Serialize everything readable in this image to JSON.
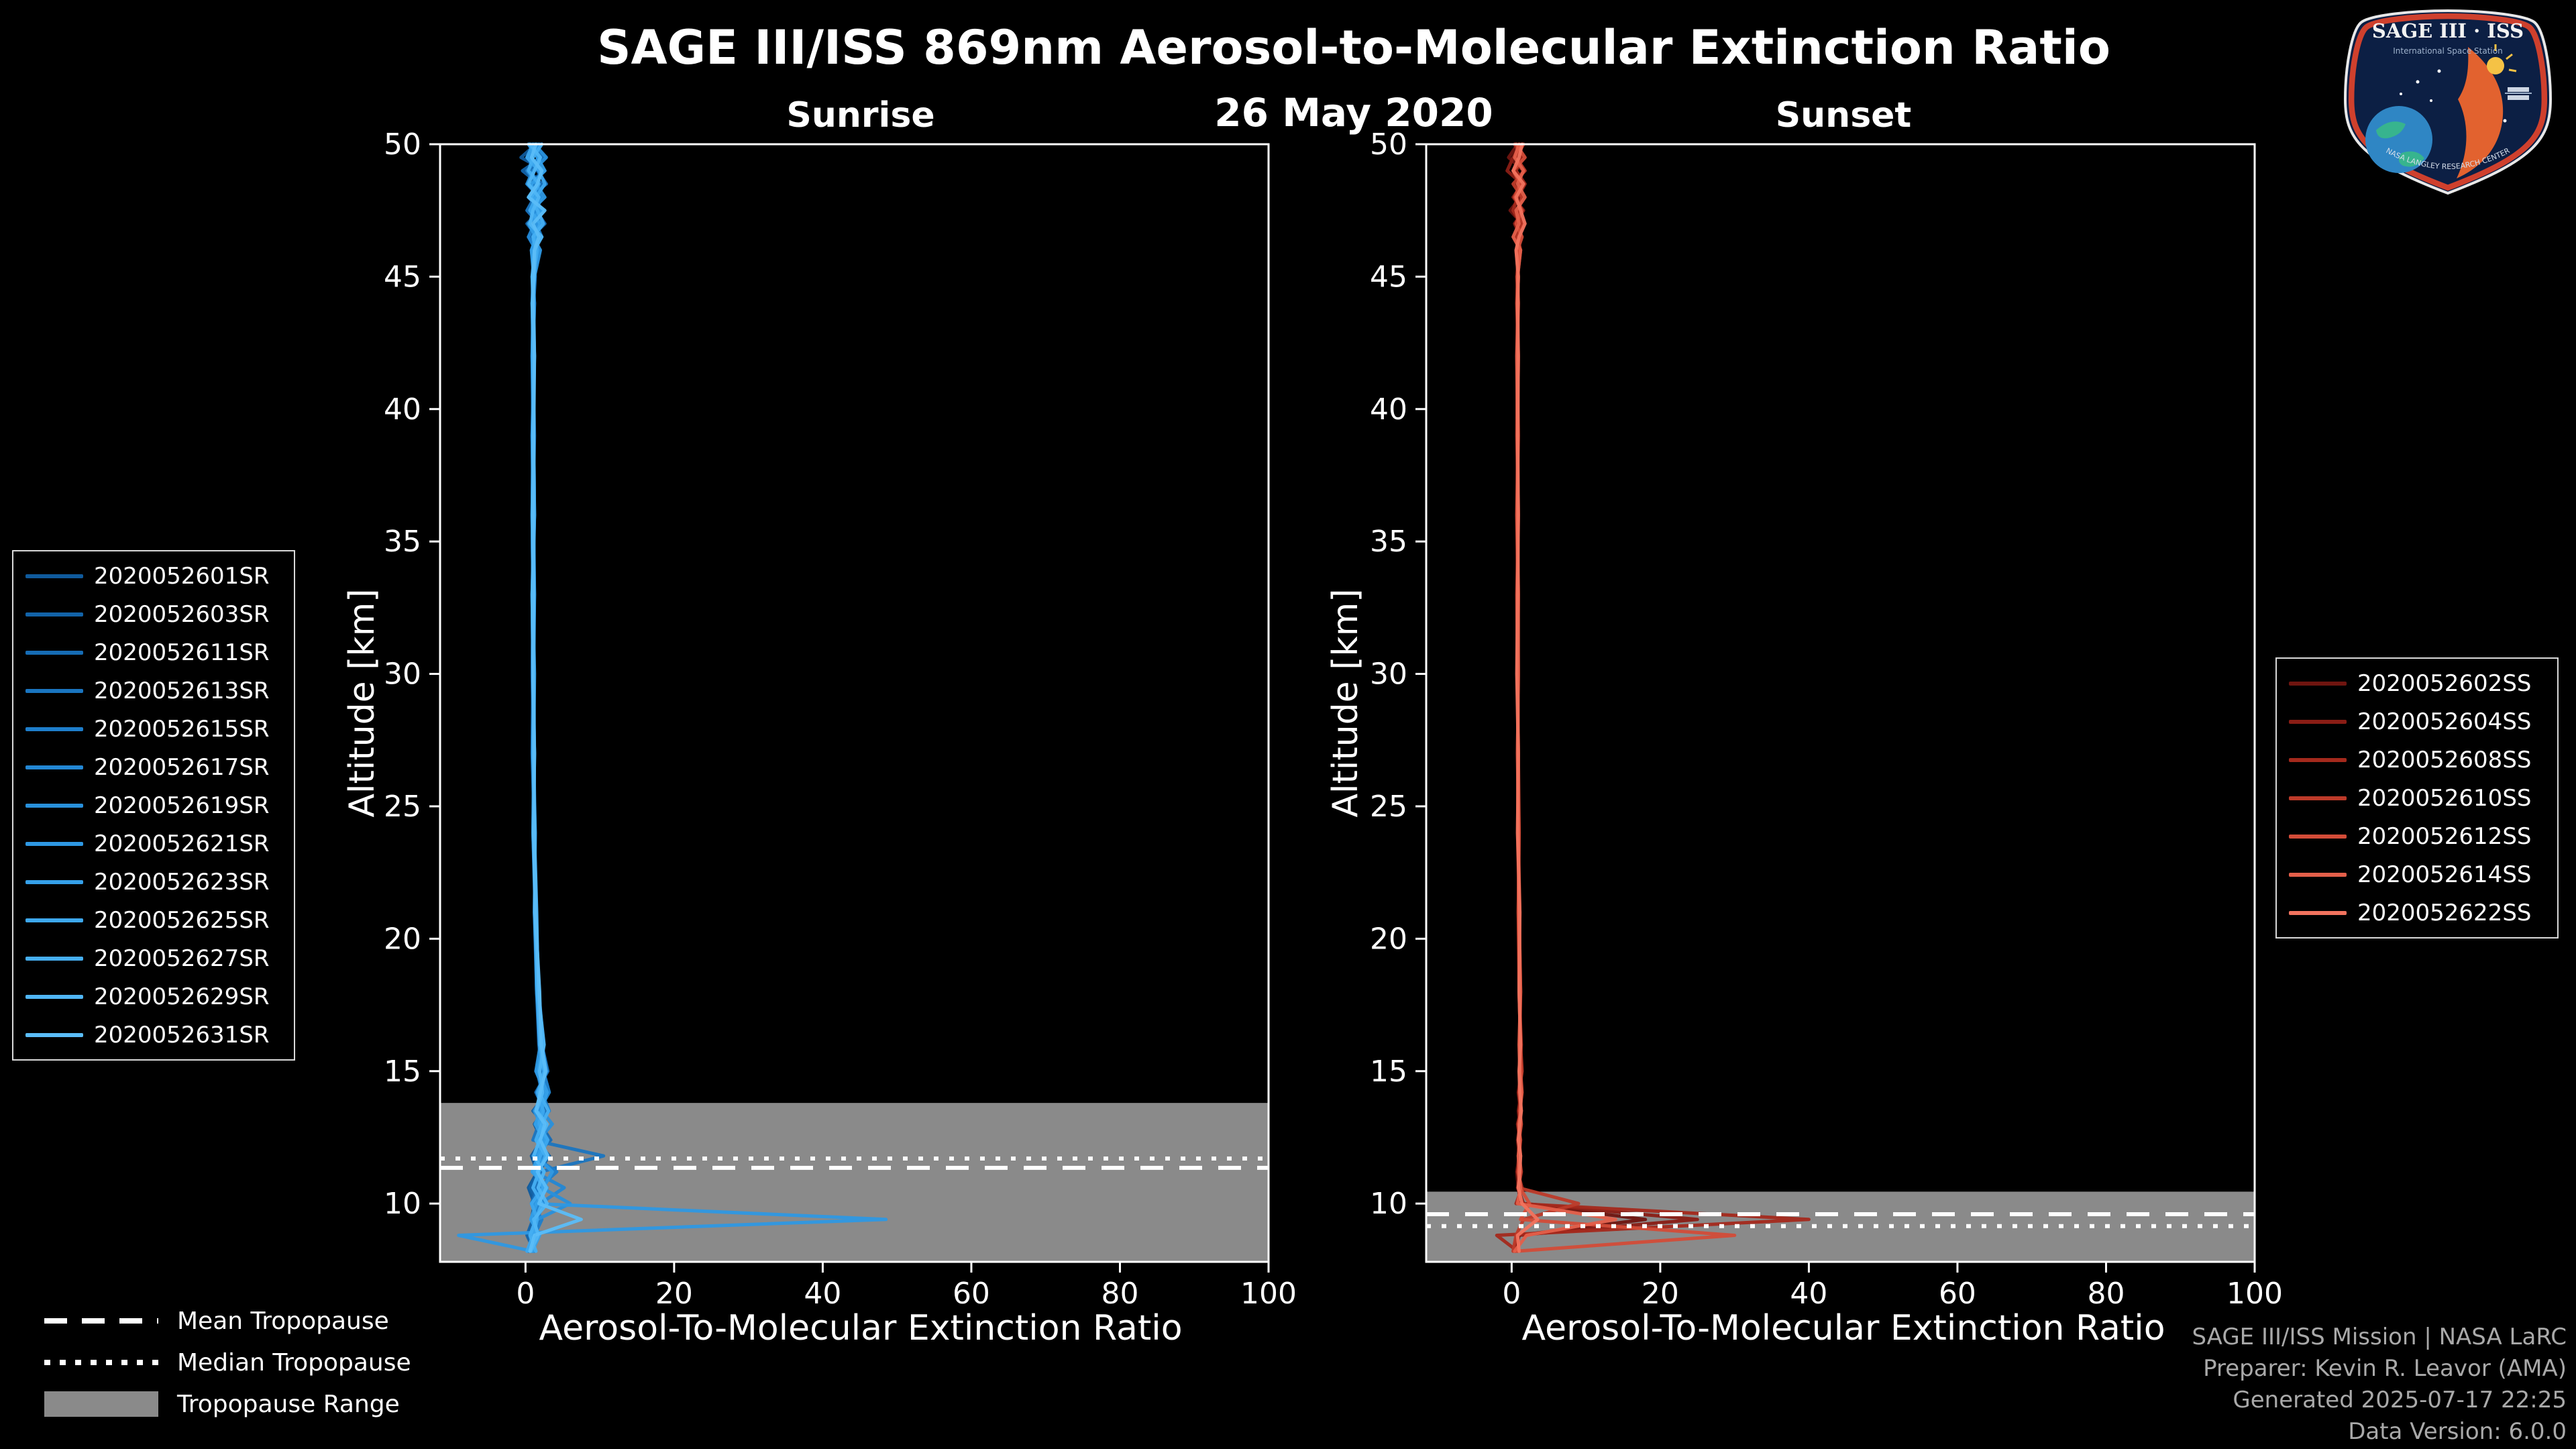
{
  "page": {
    "title": "SAGE III/ISS 869nm Aerosol-to-Molecular Extinction Ratio",
    "date": "26 May 2020"
  },
  "logo": {
    "title": "SAGE III · ISS",
    "subtitle": "International Space Station",
    "arc_text": "NASA LANGLEY RESEARCH CENTER"
  },
  "legends": {
    "tropopause": {
      "mean": "Mean Tropopause",
      "median": "Median Tropopause",
      "range": "Tropopause Range"
    }
  },
  "credits": {
    "lines": [
      "SAGE III/ISS Mission | NASA LaRC",
      "Preparer: Kevin R. Leavor (AMA)",
      "Generated 2025-07-17 22:25",
      "Data Version: 6.0.0"
    ]
  },
  "chart_data": [
    {
      "type": "line",
      "title": "Sunrise",
      "xlabel": "Aerosol-To-Molecular Extinction Ratio",
      "ylabel": "Altitude [km]",
      "xlim": [
        -11.5,
        100
      ],
      "ylim": [
        7.8,
        50
      ],
      "xticks": [
        0,
        20,
        40,
        60,
        80,
        100
      ],
      "yticks": [
        10,
        15,
        20,
        25,
        30,
        35,
        40,
        45,
        50
      ],
      "grid": false,
      "legend_position": "outside-left",
      "tropopause": {
        "mean": 11.35,
        "median": 11.7,
        "range": [
          7.8,
          13.8
        ],
        "range_color": "#8a8a8a"
      },
      "altitudes": [
        50,
        49.5,
        49,
        48.5,
        48,
        47.5,
        47,
        46.5,
        46,
        45,
        44,
        42,
        39,
        36,
        33,
        30,
        27,
        24,
        21,
        18,
        16,
        15,
        14.2,
        13.5,
        13,
        12.4,
        11.8,
        11.2,
        10.6,
        10,
        9.4,
        8.8,
        8.2
      ],
      "series": [
        {
          "name": "2020052601SR",
          "color": "#0f5a9c",
          "values": [
            1.4,
            -0.6,
            2.6,
            0.2,
            1.8,
            0.8,
            2.4,
            0.4,
            1.6,
            1.0,
            1.2,
            1.0,
            1.1,
            0.9,
            1.0,
            1.1,
            1.0,
            1.2,
            1.3,
            1.6,
            2.0,
            2.6,
            1.8,
            2.4,
            1.2,
            2.2,
            0.8,
            1.6,
            0.4,
            1.2,
            0.8,
            1.4,
            0.6
          ]
        },
        {
          "name": "2020052603SR",
          "color": "#1263a9",
          "values": [
            0.6,
            2.2,
            -0.4,
            1.8,
            0.4,
            2.0,
            0.2,
            1.6,
            0.8,
            1.2,
            0.9,
            1.1,
            1.0,
            1.2,
            0.9,
            1.0,
            1.2,
            1.1,
            1.4,
            1.7,
            2.4,
            1.4,
            3.0,
            1.0,
            2.6,
            1.4,
            3.2,
            1.8,
            0.6,
            1.8,
            1.0,
            0.2,
            1.2
          ]
        },
        {
          "name": "2020052611SR",
          "color": "#166cb5",
          "values": [
            2.0,
            0.2,
            1.6,
            2.8,
            0.6,
            1.4,
            2.6,
            0.8,
            1.8,
            1.1,
            1.0,
            1.2,
            0.9,
            1.1,
            1.0,
            0.9,
            1.1,
            1.3,
            1.2,
            1.5,
            1.8,
            2.2,
            2.8,
            1.6,
            2.0,
            3.4,
            1.2,
            2.4,
            1.6,
            0.8,
            1.8,
            1.2,
            0.4
          ]
        },
        {
          "name": "2020052613SR",
          "color": "#1a75c0",
          "values": [
            1.0,
            2.6,
            0.4,
            2.2,
            1.2,
            0.2,
            1.8,
            1.0,
            1.4,
            0.9,
            1.1,
            1.0,
            1.2,
            1.0,
            1.1,
            1.0,
            0.9,
            1.2,
            1.4,
            1.6,
            2.2,
            3.0,
            1.4,
            2.6,
            1.8,
            1.0,
            10.5,
            2.0,
            1.2,
            2.6,
            1.4,
            0.6,
            1.0
          ]
        },
        {
          "name": "2020052615SR",
          "color": "#1e7ecb",
          "values": [
            1.6,
            0.4,
            2.4,
            1.0,
            2.0,
            0.6,
            1.4,
            2.2,
            1.0,
            1.3,
            1.1,
            0.9,
            1.0,
            1.1,
            1.2,
            1.0,
            1.1,
            1.2,
            1.3,
            1.8,
            2.4,
            1.6,
            2.2,
            3.2,
            1.4,
            2.4,
            1.0,
            4.2,
            1.8,
            1.0,
            2.2,
            1.2,
            0.8
          ]
        },
        {
          "name": "2020052617SR",
          "color": "#2387d4",
          "values": [
            0.8,
            1.8,
            0.2,
            1.6,
            0.6,
            2.4,
            1.2,
            0.4,
            1.4,
            1.0,
            0.9,
            1.1,
            1.0,
            0.9,
            1.0,
            1.1,
            1.2,
            1.0,
            1.3,
            1.5,
            1.9,
            2.4,
            3.2,
            1.8,
            2.8,
            1.6,
            2.2,
            1.2,
            5.2,
            2.0,
            1.0,
            1.6,
            0.4
          ]
        },
        {
          "name": "2020052619SR",
          "color": "#2890dc",
          "values": [
            1.2,
            2.8,
            1.0,
            0.2,
            2.2,
            1.4,
            0.6,
            1.8,
            1.2,
            1.0,
            1.2,
            1.0,
            1.1,
            1.2,
            0.9,
            1.0,
            1.1,
            1.2,
            1.4,
            1.7,
            2.1,
            2.8,
            1.6,
            2.2,
            3.6,
            1.8,
            2.6,
            1.4,
            2.2,
            6.0,
            1.6,
            0.8,
            1.2
          ]
        },
        {
          "name": "2020052621SR",
          "color": "#2e98e3",
          "values": [
            1.8,
            0.6,
            2.2,
            1.4,
            2.6,
            0.8,
            1.6,
            1.0,
            2.0,
            1.2,
            1.0,
            1.1,
            0.9,
            1.0,
            1.1,
            1.0,
            1.2,
            1.1,
            1.3,
            1.6,
            2.0,
            1.4,
            2.6,
            1.2,
            2.0,
            2.8,
            1.4,
            3.6,
            2.4,
            1.2,
            48.5,
            -9.0,
            1.0
          ]
        },
        {
          "name": "2020052623SR",
          "color": "#35a0e9",
          "values": [
            0.4,
            1.6,
            2.6,
            0.8,
            1.2,
            2.0,
            0.4,
            1.4,
            0.8,
            1.1,
            1.0,
            0.9,
            1.1,
            1.0,
            1.2,
            1.1,
            1.0,
            1.2,
            1.3,
            1.5,
            2.3,
            1.7,
            2.9,
            2.1,
            1.3,
            2.5,
            1.7,
            0.9,
            2.9,
            1.5,
            0.7,
            1.9,
            0.9
          ]
        },
        {
          "name": "2020052625SR",
          "color": "#3da8ee",
          "values": [
            1.0,
            0.2,
            1.8,
            2.6,
            1.4,
            0.6,
            2.0,
            1.2,
            1.6,
            1.0,
            1.1,
            1.2,
            1.0,
            0.9,
            1.0,
            1.2,
            1.1,
            1.0,
            1.4,
            1.8,
            2.2,
            2.8,
            1.6,
            2.4,
            1.8,
            3.0,
            2.0,
            1.2,
            2.4,
            0.8,
            1.6,
            1.0,
            0.2
          ]
        },
        {
          "name": "2020052627SR",
          "color": "#46aff2",
          "values": [
            2.2,
            1.0,
            0.4,
            1.8,
            0.8,
            1.6,
            2.4,
            1.0,
            1.4,
            1.2,
            0.9,
            1.0,
            1.1,
            1.2,
            1.0,
            1.1,
            1.0,
            1.3,
            1.2,
            1.6,
            1.9,
            2.5,
            1.8,
            3.1,
            2.2,
            1.4,
            2.7,
            1.8,
            1.0,
            2.2,
            1.4,
            0.6,
            1.4
          ]
        },
        {
          "name": "2020052629SR",
          "color": "#50b6f5",
          "values": [
            0.6,
            2.0,
            1.2,
            0.4,
            1.8,
            1.0,
            0.6,
            2.2,
            1.2,
            0.9,
            1.0,
            1.1,
            1.0,
            1.1,
            0.9,
            1.0,
            1.1,
            1.2,
            1.5,
            1.7,
            2.5,
            1.9,
            2.3,
            1.5,
            2.9,
            1.9,
            1.1,
            2.5,
            1.7,
            2.9,
            1.1,
            1.7,
            0.7
          ]
        },
        {
          "name": "2020052631SR",
          "color": "#5bbdf8",
          "values": [
            1.4,
            0.8,
            2.2,
            1.6,
            0.4,
            2.6,
            1.0,
            1.8,
            1.2,
            1.1,
            1.0,
            1.2,
            1.1,
            1.0,
            1.1,
            1.0,
            1.2,
            1.1,
            1.3,
            1.9,
            2.1,
            2.7,
            2.0,
            1.4,
            2.6,
            2.0,
            3.0,
            1.6,
            2.8,
            1.8,
            7.5,
            1.2,
            0.6
          ]
        }
      ]
    },
    {
      "type": "line",
      "title": "Sunset",
      "xlabel": "Aerosol-To-Molecular Extinction Ratio",
      "ylabel": "Altitude [km]",
      "xlim": [
        -11.5,
        100
      ],
      "ylim": [
        7.8,
        50
      ],
      "xticks": [
        0,
        20,
        40,
        60,
        80,
        100
      ],
      "yticks": [
        10,
        15,
        20,
        25,
        30,
        35,
        40,
        45,
        50
      ],
      "grid": false,
      "legend_position": "outside-right",
      "tropopause": {
        "mean": 9.6,
        "median": 9.15,
        "range": [
          7.8,
          10.45
        ],
        "range_color": "#8a8a8a"
      },
      "altitudes": [
        50,
        49.5,
        49,
        48.5,
        48,
        47.5,
        47,
        46.5,
        46,
        45,
        44,
        42,
        39,
        36,
        33,
        30,
        27,
        24,
        21,
        18,
        16,
        15,
        14.2,
        13.5,
        13,
        12.4,
        11.8,
        11.2,
        10.6,
        10,
        9.4,
        8.8,
        8.2
      ],
      "series": [
        {
          "name": "2020052602SS",
          "color": "#6f1510",
          "values": [
            0.8,
            -0.4,
            1.6,
            0.4,
            1.2,
            -0.2,
            1.4,
            0.6,
            1.0,
            0.8,
            0.7,
            0.9,
            0.8,
            0.7,
            0.8,
            0.9,
            0.8,
            0.9,
            1.0,
            1.1,
            1.2,
            1.0,
            1.3,
            0.9,
            1.1,
            0.8,
            1.0,
            0.7,
            0.9,
            1.2,
            18.0,
            1.0,
            0.5
          ]
        },
        {
          "name": "2020052604SS",
          "color": "#8a1d15",
          "values": [
            1.2,
            0.2,
            -0.6,
            1.4,
            0.2,
            1.6,
            0.4,
            1.2,
            0.6,
            0.9,
            0.8,
            0.7,
            0.9,
            0.8,
            0.9,
            0.8,
            0.9,
            0.8,
            1.0,
            1.2,
            1.1,
            1.3,
            0.9,
            1.2,
            0.8,
            1.1,
            0.9,
            1.2,
            0.8,
            1.6,
            25.0,
            0.8,
            0.4
          ]
        },
        {
          "name": "2020052608SS",
          "color": "#a4291c",
          "values": [
            0.4,
            1.4,
            0.6,
            1.8,
            0.8,
            0.2,
            1.2,
            0.4,
            1.0,
            0.7,
            0.9,
            0.8,
            0.7,
            0.9,
            0.8,
            0.9,
            0.8,
            1.0,
            0.9,
            1.0,
            1.3,
            1.1,
            1.2,
            1.0,
            1.2,
            0.9,
            1.1,
            0.8,
            1.4,
            0.6,
            40.0,
            -2.0,
            0.8
          ]
        },
        {
          "name": "2020052610SS",
          "color": "#bd3a29",
          "values": [
            1.6,
            0.6,
            1.8,
            0.2,
            1.4,
            0.8,
            1.6,
            0.8,
            1.2,
            0.8,
            0.7,
            0.9,
            0.8,
            0.9,
            0.7,
            0.8,
            0.9,
            0.9,
            1.1,
            1.0,
            1.2,
            1.4,
            1.0,
            1.3,
            0.9,
            1.2,
            1.0,
            1.3,
            0.9,
            9.0,
            1.6,
            0.6,
            0.2
          ]
        },
        {
          "name": "2020052612SS",
          "color": "#d34c38",
          "values": [
            0.6,
            1.8,
            0.2,
            1.2,
            0.4,
            1.4,
            0.6,
            1.4,
            0.8,
            0.9,
            0.8,
            0.8,
            0.9,
            0.7,
            0.9,
            0.8,
            0.9,
            1.0,
            0.9,
            1.1,
            1.1,
            1.2,
            1.4,
            1.1,
            1.3,
            1.0,
            1.2,
            0.9,
            1.1,
            2.4,
            1.2,
            30.0,
            0.6
          ]
        },
        {
          "name": "2020052614SS",
          "color": "#e45f4a",
          "values": [
            1.0,
            0.4,
            1.6,
            0.8,
            1.8,
            0.6,
            1.0,
            0.2,
            1.2,
            0.8,
            0.9,
            0.7,
            0.8,
            0.8,
            0.9,
            0.9,
            0.8,
            0.9,
            1.0,
            1.2,
            1.0,
            1.1,
            1.3,
            1.2,
            1.0,
            1.1,
            0.9,
            1.0,
            1.2,
            0.8,
            14.0,
            2.0,
            0.4
          ]
        },
        {
          "name": "2020052622SS",
          "color": "#f2735e",
          "values": [
            1.4,
            1.0,
            0.2,
            1.6,
            0.6,
            1.2,
            1.8,
            1.0,
            0.6,
            0.9,
            0.8,
            0.9,
            0.8,
            0.9,
            0.8,
            0.7,
            0.9,
            0.8,
            1.1,
            1.0,
            1.2,
            1.0,
            1.1,
            1.3,
            1.1,
            0.9,
            1.2,
            1.1,
            0.9,
            1.4,
            3.5,
            0.8,
            1.0
          ]
        }
      ]
    }
  ]
}
